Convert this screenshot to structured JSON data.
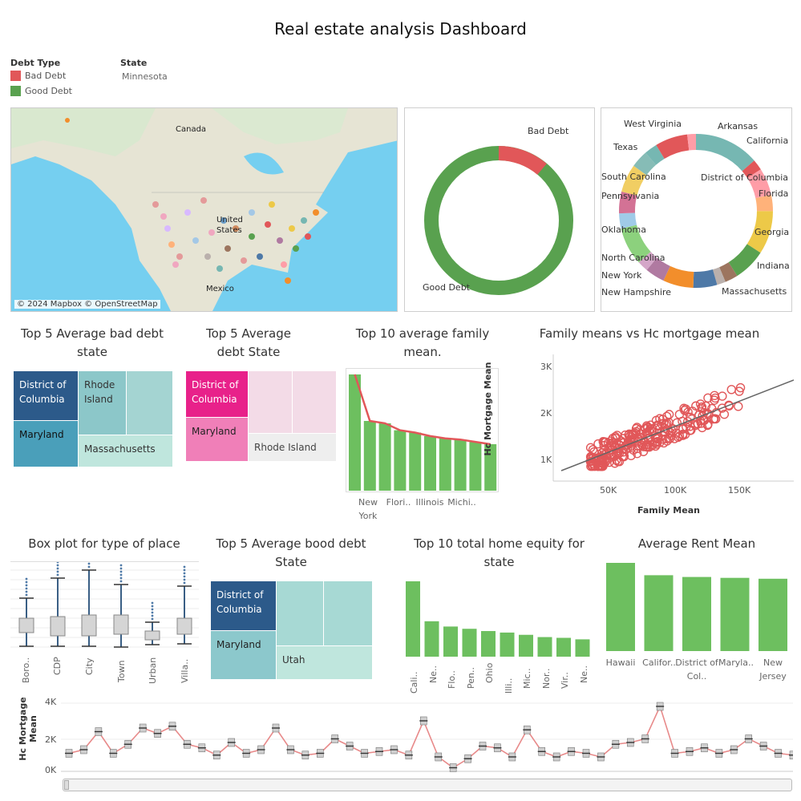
{
  "dashboard": {
    "title": "Real estate analysis Dashboard"
  },
  "legend": {
    "title": "Debt Type",
    "items": [
      {
        "label": "Bad Debt",
        "color": "#e15759"
      },
      {
        "label": "Good Debt",
        "color": "#59a14f"
      }
    ]
  },
  "state_filter": {
    "title": "State",
    "value": "Minnesota"
  },
  "map": {
    "labels": {
      "canada": "Canada",
      "us_line1": "United",
      "us_line2": "States",
      "mexico": "Mexico"
    },
    "credit": "© 2024 Mapbox © OpenStreetMap"
  },
  "debt_donut": {
    "labels": {
      "bad": "Bad Debt",
      "good": "Good Debt"
    },
    "chart_data": {
      "type": "pie",
      "categories": [
        "Bad Debt",
        "Good Debt"
      ],
      "values": [
        0.1,
        0.9
      ]
    }
  },
  "state_donut": {
    "labels": [
      "West Virginia",
      "Arkansas",
      "California",
      "Texas",
      "South Carolina",
      "District of Columbia",
      "Pennsylvania",
      "Florida",
      "Oklahoma",
      "Georgia",
      "North Carolina",
      "Indiana",
      "New York",
      "Massachusetts",
      "New Hampshire"
    ]
  },
  "top5_bad_debt": {
    "title": "Top 5 Average bad debt state",
    "cells": [
      "District of Columbia",
      "Rhode Island",
      "Maryland",
      "Massachusetts"
    ]
  },
  "top5_debt": {
    "title": "Top 5 Average debt State",
    "cells": [
      "District of Columbia",
      "Maryland",
      "Rhode Island"
    ]
  },
  "top10_family": {
    "title": "Top 10 average family mean.",
    "x_labels": [
      "New York",
      "Flori..",
      "Illinois",
      "Michi.."
    ],
    "chart_data": {
      "type": "bar",
      "values": [
        100,
        60,
        58,
        52,
        50,
        47,
        45,
        44,
        42,
        40
      ]
    }
  },
  "scatter": {
    "title": "Family means vs Hc mortgage mean",
    "xlabel": "Family Mean",
    "ylabel": "Hc Mortgage Mean",
    "x_ticks": [
      "50K",
      "100K",
      "150K"
    ],
    "y_ticks": [
      "1K",
      "2K",
      "3K"
    ],
    "chart_data": {
      "type": "scatter",
      "xlim": [
        30000,
        190000
      ],
      "ylim": [
        700,
        3300
      ]
    }
  },
  "box_plot": {
    "title": "Box plot for type of place",
    "categories": [
      "Boro..",
      "CDP",
      "City",
      "Town",
      "Urban",
      "Villa.."
    ]
  },
  "top5_good_debt": {
    "title": "Top 5 Average bood debt State",
    "cells": [
      "District of Columbia",
      "Maryland",
      "Utah"
    ]
  },
  "top10_equity": {
    "title": "Top 10 total home equity for state",
    "x_labels": [
      "Cali..",
      "Ne..",
      "Flo..",
      "Pen..",
      "Ohio",
      "Illi..",
      "Mic..",
      "Nor..",
      "Vir..",
      "Ne.."
    ],
    "chart_data": {
      "type": "bar",
      "values": [
        100,
        47,
        40,
        37,
        34,
        32,
        29,
        26,
        25,
        23
      ]
    }
  },
  "avg_rent": {
    "title": "Average Rent Mean",
    "x_labels": [
      "Hawaii",
      "Califor..",
      "District of Col..",
      "Maryla..",
      "New Jersey"
    ],
    "chart_data": {
      "type": "bar",
      "values": [
        100,
        86,
        84,
        83,
        82
      ]
    }
  },
  "timeline": {
    "ylabel": "Hc Mortgage Mean",
    "y_ticks": [
      "4K",
      "2K",
      "0K"
    ],
    "chart_data": {
      "type": "line",
      "ylim": [
        0,
        4000
      ]
    }
  }
}
